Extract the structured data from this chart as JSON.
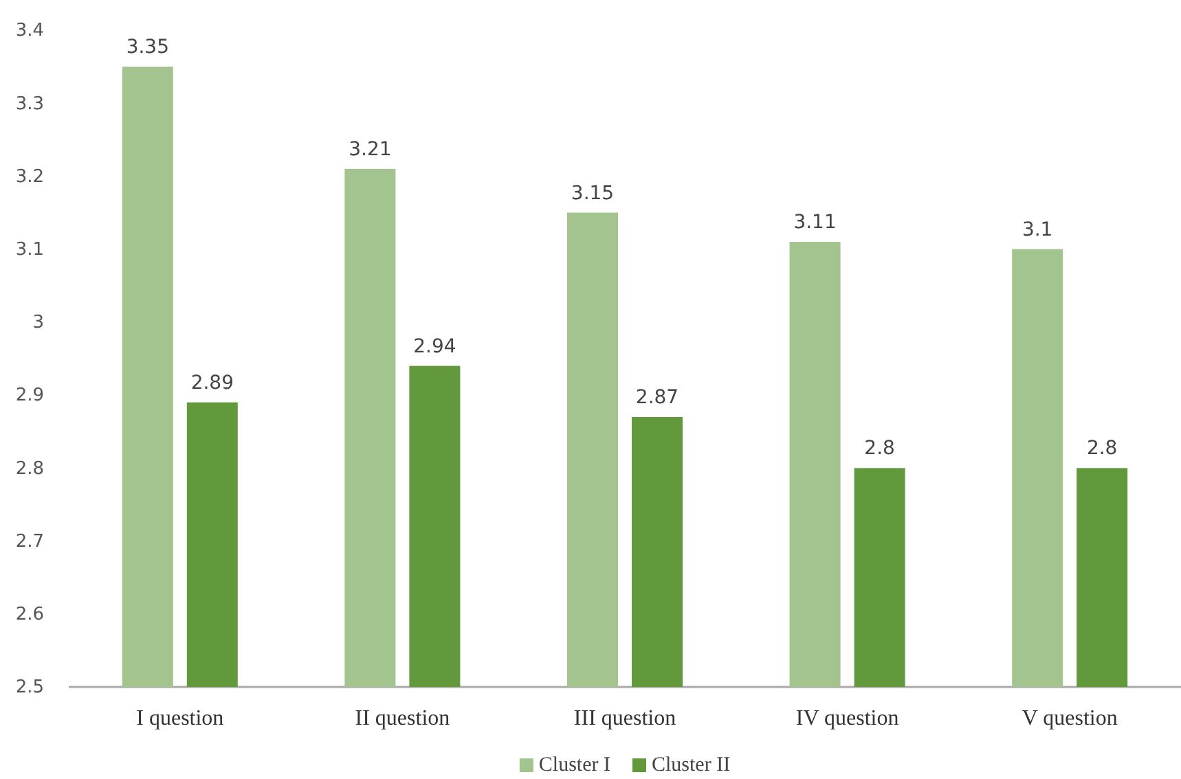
{
  "chart_data": {
    "type": "bar",
    "categories": [
      "I question",
      "II question",
      "III question",
      "IV question",
      "V question"
    ],
    "series": [
      {
        "name": "Cluster I",
        "color": "#a3c48f",
        "values": [
          3.35,
          3.21,
          3.15,
          3.11,
          3.1
        ]
      },
      {
        "name": "Cluster II",
        "color": "#63993d",
        "values": [
          2.89,
          2.94,
          2.87,
          2.8,
          2.8
        ]
      }
    ],
    "ylim": [
      2.5,
      3.4
    ],
    "yticks": [
      2.5,
      2.6,
      2.7,
      2.8,
      2.9,
      {
        "value": 3,
        "label": "3"
      },
      3.1,
      3.2,
      3.3,
      3.4
    ],
    "data_labels": true,
    "legend": "bottom",
    "grid": false
  }
}
